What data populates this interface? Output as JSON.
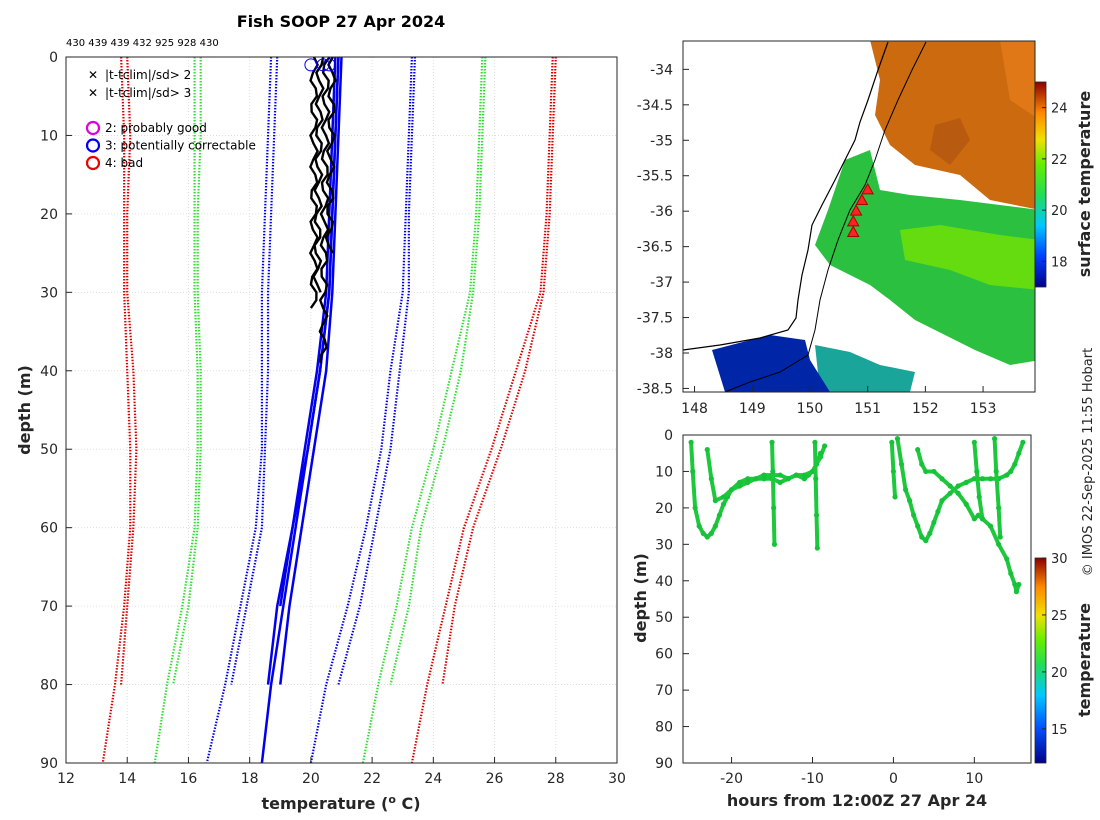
{
  "chart_data": [
    {
      "type": "line",
      "title": "Fish SOOP 27 Apr 2024",
      "xlabel": "temperature (°C)",
      "xlabel_prefix": "temperature (",
      "xlabel_sup": "o",
      "xlabel_suffix": " C)",
      "ylabel": "depth (m)",
      "xlim": [
        12,
        30
      ],
      "ylim": [
        0,
        90
      ],
      "xticks": [
        12,
        14,
        16,
        18,
        20,
        22,
        24,
        26,
        28,
        30
      ],
      "yticks": [
        0,
        10,
        20,
        30,
        40,
        50,
        60,
        70,
        80,
        90
      ],
      "top_annotation": "430 439 439 432 925 928 430",
      "legend": [
        {
          "marker": "x",
          "color": "#33dd33",
          "label": "|t-tclim|/sd> 2"
        },
        {
          "marker": "x",
          "color": "#dd0000",
          "label": "|t-tclim|/sd> 3"
        },
        {
          "marker": "o",
          "color": "#dd00dd",
          "label": "2: probably good"
        },
        {
          "marker": "o",
          "color": "#0000ee",
          "label": "3: potentially correctable"
        },
        {
          "marker": "o",
          "color": "#ee0000",
          "label": "4: bad"
        }
      ],
      "climatology_bounds": [
        {
          "name": "-3sd",
          "color": "#dd0000",
          "depths": [
            0,
            10,
            20,
            30,
            40,
            50,
            60,
            70,
            80,
            90
          ],
          "a": [
            13.8,
            13.9,
            13.9,
            13.9,
            14.0,
            14.1,
            14.1,
            13.9,
            13.6,
            13.2
          ],
          "b": [
            14.0,
            14.1,
            14.0,
            14.0,
            14.2,
            14.3,
            14.2,
            14.0,
            13.8,
            null
          ]
        },
        {
          "name": "-2sd",
          "color": "#33dd33",
          "depths": [
            0,
            10,
            20,
            30,
            40,
            50,
            60,
            70,
            80,
            90
          ],
          "a": [
            16.2,
            16.2,
            16.2,
            16.2,
            16.3,
            16.3,
            16.2,
            15.8,
            15.3,
            14.9
          ],
          "b": [
            16.4,
            16.4,
            16.3,
            16.3,
            16.4,
            16.4,
            16.3,
            16.0,
            15.5,
            null
          ]
        },
        {
          "name": "-1sd",
          "color": "#0000ee",
          "depths": [
            0,
            10,
            20,
            30,
            40,
            50,
            60,
            70,
            80,
            90
          ],
          "a": [
            18.7,
            18.6,
            18.5,
            18.4,
            18.4,
            18.4,
            18.2,
            17.7,
            17.2,
            16.6
          ],
          "b": [
            18.9,
            18.8,
            18.7,
            18.6,
            18.6,
            18.5,
            18.4,
            17.9,
            17.4,
            null
          ]
        },
        {
          "name": "+1sd",
          "color": "#0000ee",
          "depths": [
            0,
            10,
            20,
            30,
            40,
            50,
            60,
            70,
            80,
            90
          ],
          "a": [
            23.3,
            23.2,
            23.1,
            23.0,
            22.6,
            22.3,
            21.8,
            21.2,
            20.5,
            20.0
          ],
          "b": [
            23.4,
            23.3,
            23.2,
            23.2,
            22.9,
            22.6,
            22.1,
            21.6,
            20.9,
            null
          ]
        },
        {
          "name": "+2sd",
          "color": "#33dd33",
          "depths": [
            0,
            10,
            20,
            30,
            40,
            50,
            60,
            70,
            80,
            90
          ],
          "a": [
            25.6,
            25.5,
            25.4,
            25.2,
            24.6,
            24.0,
            23.3,
            22.8,
            22.2,
            21.7
          ],
          "b": [
            25.7,
            25.6,
            25.5,
            25.3,
            24.9,
            24.3,
            23.6,
            23.2,
            22.6,
            null
          ]
        },
        {
          "name": "+3sd",
          "color": "#dd0000",
          "depths": [
            0,
            10,
            20,
            30,
            40,
            50,
            60,
            70,
            80,
            90
          ],
          "a": [
            27.9,
            27.8,
            27.7,
            27.5,
            26.7,
            25.9,
            25.0,
            24.4,
            23.8,
            23.3
          ],
          "b": [
            28.0,
            27.9,
            27.8,
            27.6,
            27.0,
            26.2,
            25.3,
            24.7,
            24.3,
            null
          ]
        }
      ],
      "profiles_blue": [
        {
          "depths": [
            0,
            10,
            20,
            30,
            40,
            50,
            60,
            70,
            80
          ],
          "temps": [
            20.9,
            20.8,
            20.7,
            20.6,
            20.3,
            19.9,
            19.4,
            18.9,
            18.6
          ]
        },
        {
          "depths": [
            0,
            10,
            20,
            30,
            40,
            50,
            60,
            70,
            80
          ],
          "temps": [
            21.0,
            20.9,
            20.8,
            20.7,
            20.5,
            20.1,
            19.7,
            19.3,
            19.0
          ]
        },
        {
          "depths": [
            0,
            10,
            20,
            30,
            40,
            50,
            60,
            70
          ],
          "temps": [
            20.8,
            20.7,
            20.6,
            20.5,
            20.2,
            19.8,
            19.4,
            19.0
          ]
        },
        {
          "depths": [
            0,
            10,
            20,
            30,
            40,
            50,
            60,
            70,
            80,
            90
          ],
          "temps": [
            20.9,
            20.8,
            20.7,
            20.6,
            20.3,
            19.9,
            19.5,
            19.1,
            18.7,
            18.4
          ]
        }
      ],
      "profiles_black": [
        {
          "depths": [
            0,
            32
          ],
          "temps": [
            20.1,
            20.1
          ]
        },
        {
          "depths": [
            0,
            30
          ],
          "temps": [
            20.3,
            20.2
          ]
        },
        {
          "depths": [
            0,
            39
          ],
          "temps": [
            20.5,
            20.4
          ]
        },
        {
          "depths": [
            0,
            25
          ],
          "temps": [
            20.7,
            20.6
          ]
        }
      ],
      "flag_circles": [
        {
          "depth": 1,
          "temp": 20.0,
          "flag": 3
        },
        {
          "depth": 1,
          "temp": 20.4,
          "flag": 3
        },
        {
          "depth": 1,
          "temp": 20.6,
          "flag": 3
        }
      ]
    },
    {
      "type": "heatmap",
      "subtype": "map",
      "xlim": [
        147.8,
        153.9
      ],
      "ylim": [
        -38.55,
        -33.6
      ],
      "xticks": [
        148,
        149,
        150,
        151,
        152,
        153
      ],
      "yticks": [
        -34,
        -34.5,
        -35,
        -35.5,
        -36,
        -36.5,
        -37,
        -37.5,
        -38,
        -38.5
      ],
      "colorbar_label": "surface temperature",
      "colorbar_range": [
        17,
        25
      ],
      "colorbar_ticks": [
        18,
        20,
        22,
        24
      ],
      "ship_positions": [
        {
          "lon": 151.0,
          "lat": -35.7
        },
        {
          "lon": 150.9,
          "lat": -35.85
        },
        {
          "lon": 150.8,
          "lat": -36.0
        },
        {
          "lon": 150.75,
          "lat": -36.15
        },
        {
          "lon": 150.75,
          "lat": -36.3
        }
      ]
    },
    {
      "type": "scatter",
      "xlabel": "hours from 12:00Z 27 Apr 24",
      "ylabel": "depth (m)",
      "xlim": [
        -26,
        17
      ],
      "ylim": [
        0,
        90
      ],
      "xticks": [
        -20,
        -10,
        0,
        10
      ],
      "yticks": [
        0,
        10,
        20,
        30,
        40,
        50,
        60,
        70,
        80,
        90
      ],
      "colorbar_label": "temperature",
      "colorbar_range": [
        12,
        30
      ],
      "colorbar_ticks": [
        15,
        20,
        25,
        30
      ],
      "tracks": [
        {
          "hours": [
            -25.0,
            -24.8,
            -24.5,
            -24.0,
            -23.5,
            -23.0,
            -22.5,
            -22.0,
            -21.5,
            -21.0,
            -20.5,
            -20.0,
            -19.0,
            -18.0,
            -17.0,
            -16.0,
            -15.0,
            -14.0,
            -13.0,
            -12.0,
            -11.0,
            -10.5,
            -10.0,
            -9.5,
            -9.0,
            -8.5
          ],
          "depths": [
            2,
            10,
            20,
            25,
            27,
            28,
            27,
            25,
            22,
            19,
            17,
            15,
            14,
            13,
            12,
            12,
            12,
            13,
            12,
            11,
            12,
            11,
            10,
            8,
            6,
            3
          ]
        },
        {
          "hours": [
            -23.0,
            -22.5,
            -22.0,
            -21.0,
            -20.0,
            -19.0,
            -18.0,
            -17.0,
            -16.0,
            -15.0,
            -14.0,
            -13.0,
            -12.0,
            -11.0,
            -10.0,
            -9.5,
            -9.0
          ],
          "depths": [
            4,
            12,
            18,
            17,
            15,
            13,
            12,
            12,
            11,
            11,
            11,
            12,
            11,
            11,
            10,
            8,
            5
          ]
        },
        {
          "hours": [
            -15.0,
            -14.9,
            -14.8,
            -14.7
          ],
          "depths": [
            2,
            10,
            20,
            30
          ]
        },
        {
          "hours": [
            -9.7,
            -9.6,
            -9.5,
            -9.4
          ],
          "depths": [
            2,
            12,
            22,
            31
          ]
        },
        {
          "hours": [
            -0.2,
            0.0,
            0.2
          ],
          "depths": [
            2,
            10,
            17
          ]
        },
        {
          "hours": [
            0.5,
            1.0,
            1.5,
            2.0,
            2.5,
            3.0,
            3.5,
            4.0,
            4.5,
            5.0,
            5.5,
            6.0,
            7.0,
            8.0,
            9.0,
            10.0,
            11.0,
            12.0,
            13.0,
            14.0,
            14.5,
            15.0,
            15.5,
            16.0
          ],
          "depths": [
            1,
            8,
            15,
            18,
            22,
            25,
            28,
            29,
            27,
            24,
            21,
            18,
            16,
            14,
            13,
            12,
            12,
            12,
            12,
            11,
            10,
            8,
            5,
            2
          ]
        },
        {
          "hours": [
            3.0,
            3.5,
            4.0,
            5.0,
            6.0,
            7.0,
            8.0,
            9.0,
            10.0,
            10.5,
            11.0,
            12.0,
            13.0,
            14.0,
            14.5,
            15.0,
            15.2,
            15.5
          ],
          "depths": [
            4,
            8,
            10,
            10,
            12,
            14,
            16,
            19,
            23,
            22,
            23,
            25,
            30,
            34,
            38,
            41,
            43,
            41
          ]
        },
        {
          "hours": [
            10.0,
            10.3,
            10.6,
            11.0
          ],
          "depths": [
            2,
            10,
            17,
            23
          ]
        },
        {
          "hours": [
            12.5,
            12.7,
            13.0,
            13.2
          ],
          "depths": [
            1,
            10,
            20,
            28
          ]
        }
      ]
    }
  ],
  "side_credit": "© IMOS 22-Sep-2025 11:55 Hobart"
}
